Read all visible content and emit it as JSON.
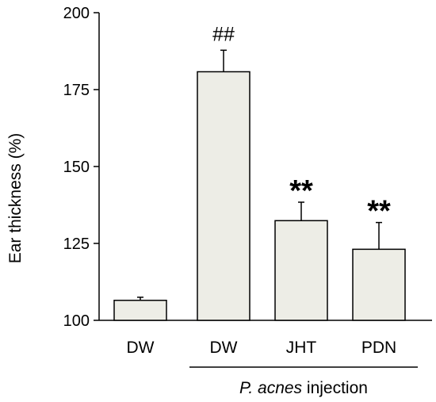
{
  "chart_data": {
    "type": "bar",
    "title": "",
    "ylabel": "Ear thickness (%)",
    "xlabel": "",
    "ylim": [
      100,
      200
    ],
    "yticks": [
      100,
      125,
      150,
      175,
      200
    ],
    "categories": [
      "DW",
      "DW",
      "JHT",
      "PDN"
    ],
    "values": [
      106.5,
      180.8,
      132.4,
      123.1
    ],
    "errors": [
      1.0,
      7.0,
      6.0,
      8.7
    ],
    "annotations": [
      "",
      "##",
      "**",
      "**"
    ],
    "bar_color": "#ededE6",
    "group_label": {
      "italic_part": "P. acnes",
      "rest": " injection",
      "spans_categories": [
        1,
        3
      ]
    },
    "grid": false,
    "legend": "none"
  }
}
